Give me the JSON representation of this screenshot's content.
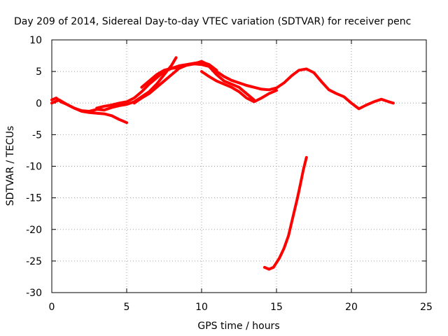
{
  "chart_data": {
    "type": "line",
    "title": "Day 209 of 2014, Sidereal Day-to-day VTEC variation (SDTVAR) for receiver penc",
    "xlabel": "GPS time / hours",
    "ylabel": "SDTVAR / TECUs",
    "xlim": [
      0,
      25
    ],
    "ylim": [
      -30,
      10
    ],
    "xticks": [
      0,
      5,
      10,
      15,
      20,
      25
    ],
    "yticks": [
      -30,
      -25,
      -20,
      -15,
      -10,
      -5,
      0,
      5,
      10
    ],
    "grid": true,
    "legend": "none",
    "series_color": "#ff0000",
    "series": [
      {
        "name": "track-1",
        "x": [
          0.0,
          0.3,
          0.6,
          1.0,
          1.5,
          2.0,
          2.5,
          3.0,
          3.5,
          4.0,
          4.5,
          5.0
        ],
        "y": [
          0.5,
          0.8,
          0.2,
          -0.2,
          -0.8,
          -1.3,
          -1.5,
          -1.6,
          -1.7,
          -2.0,
          -2.6,
          -3.1
        ]
      },
      {
        "name": "track-2",
        "x": [
          0.0,
          0.5,
          1.0,
          1.5,
          2.0,
          2.5,
          3.0,
          3.5,
          4.0,
          4.5,
          5.0,
          5.5,
          6.0,
          6.5,
          7.0,
          7.5,
          8.0,
          8.3
        ],
        "y": [
          0.0,
          0.5,
          -0.2,
          -0.8,
          -1.2,
          -1.3,
          -1.0,
          -1.1,
          -0.7,
          -0.4,
          -0.2,
          0.2,
          1.0,
          1.8,
          3.0,
          4.5,
          6.0,
          7.2
        ]
      },
      {
        "name": "track-3",
        "x": [
          3.0,
          3.5,
          4.0,
          4.5,
          5.0,
          5.5,
          6.0,
          6.5,
          7.0,
          7.5,
          8.0,
          8.5,
          9.0,
          9.5,
          10.0,
          10.5,
          11.0
        ],
        "y": [
          -0.8,
          -0.5,
          -0.3,
          0.0,
          0.2,
          0.8,
          1.8,
          3.0,
          4.0,
          5.0,
          5.5,
          5.9,
          6.1,
          6.3,
          6.5,
          6.1,
          5.2
        ]
      },
      {
        "name": "track-4",
        "x": [
          5.5,
          6.0,
          6.5,
          7.0,
          7.5,
          8.0,
          8.5,
          9.0,
          9.5,
          10.0,
          10.5,
          11.0,
          11.5,
          12.0,
          12.5,
          13.0,
          13.5,
          14.0,
          14.5,
          15.0,
          15.5,
          16.0,
          16.5,
          17.0,
          17.5,
          18.0,
          18.5,
          19.0,
          19.5,
          20.0,
          20.5,
          21.0,
          21.5,
          22.0,
          22.5,
          22.8
        ],
        "y": [
          0.0,
          0.8,
          1.5,
          2.5,
          3.5,
          4.5,
          5.5,
          6.0,
          6.2,
          6.6,
          6.0,
          5.0,
          4.2,
          3.6,
          3.2,
          2.8,
          2.5,
          2.2,
          2.1,
          2.4,
          3.2,
          4.3,
          5.2,
          5.4,
          4.8,
          3.4,
          2.1,
          1.5,
          1.0,
          0.0,
          -0.9,
          -0.3,
          0.2,
          0.6,
          0.2,
          0.0
        ]
      },
      {
        "name": "track-5",
        "x": [
          6.0,
          6.5,
          7.0,
          7.5,
          8.0,
          8.5,
          9.0,
          9.5,
          10.0,
          10.5,
          11.0,
          11.5,
          12.0,
          12.5,
          13.0,
          13.5
        ],
        "y": [
          2.5,
          3.5,
          4.5,
          5.2,
          5.5,
          5.6,
          6.0,
          6.2,
          6.1,
          5.8,
          4.5,
          3.5,
          3.0,
          2.5,
          1.5,
          0.5
        ]
      },
      {
        "name": "track-6",
        "x": [
          10.0,
          10.5,
          11.0,
          11.5,
          12.0,
          12.5,
          13.0,
          13.5,
          14.0,
          14.5,
          15.0
        ],
        "y": [
          5.0,
          4.2,
          3.5,
          3.0,
          2.5,
          1.8,
          0.8,
          0.2,
          0.8,
          1.5,
          2.0
        ]
      },
      {
        "name": "track-7",
        "x": [
          14.2,
          14.5,
          14.8,
          15.2,
          15.5,
          15.8,
          16.0,
          16.2,
          16.4,
          16.6,
          16.8,
          17.0
        ],
        "y": [
          -26.0,
          -26.3,
          -26.0,
          -24.5,
          -23.0,
          -21.0,
          -19.0,
          -17.0,
          -15.0,
          -12.8,
          -10.5,
          -8.6
        ]
      }
    ]
  }
}
